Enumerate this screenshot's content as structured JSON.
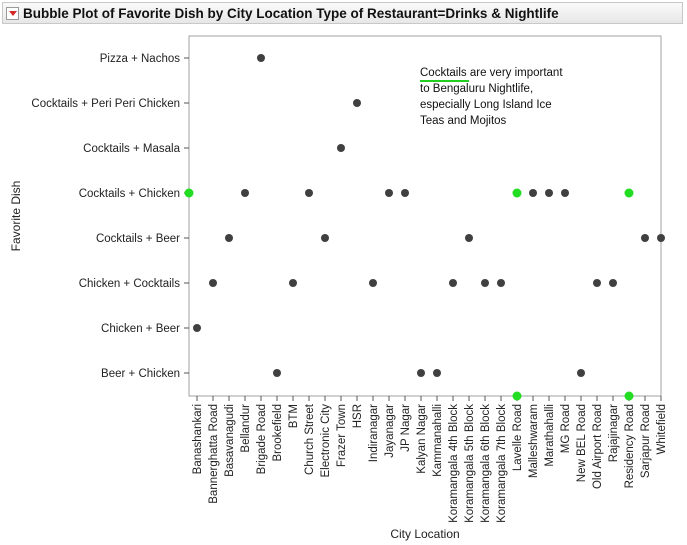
{
  "window": {
    "title": "Bubble Plot of Favorite Dish by City Location Type of Restaurant=Drinks & Nightlife"
  },
  "colors": {
    "point": "#404040",
    "highlight": "#22dd22",
    "frame": "#a0a0a0",
    "underline": "#22cc22"
  },
  "icons": {
    "collapse": "red-down-triangle-icon"
  },
  "annotation": {
    "highlight_word": "Cocktails",
    "rest": " are very important to Bengaluru Nightlife, especially Long Island Ice Teas and Mojitos"
  },
  "chart_data": {
    "type": "scatter",
    "title": "Bubble Plot of Favorite Dish by City Location Type of Restaurant=Drinks & Nightlife",
    "xlabel": "City Location",
    "ylabel": "Favorite Dish",
    "categories_x": [
      "Banashankari",
      "Bannerghatta Road",
      "Basavanagudi",
      "Bellandur",
      "Brigade Road",
      "Brookefield",
      "BTM",
      "Church Street",
      "Electronic City",
      "Frazer Town",
      "HSR",
      "Indiranagar",
      "Jayanagar",
      "JP Nagar",
      "Kalyan Nagar",
      "Kammanahalli",
      "Koramangala 4th Block",
      "Koramangala 5th Block",
      "Koramangala 6th Block",
      "Koramangala 7th Block",
      "Lavelle Road",
      "Malleshwaram",
      "Marathahalli",
      "MG Road",
      "New BEL Road",
      "Old Airport Road",
      "Rajajinagar",
      "Residency Road",
      "Sarjapur Road",
      "Whitefield"
    ],
    "categories_y": [
      "Pizza + Nachos",
      "Cocktails + Peri Peri Chicken",
      "Cocktails + Masala",
      "Cocktails + Chicken",
      "Cocktails + Beer",
      "Chicken + Cocktails",
      "Chicken + Beer",
      "Beer + Chicken"
    ],
    "points": [
      {
        "x": "Banashankari",
        "y": "Chicken + Beer"
      },
      {
        "x": "Bannerghatta Road",
        "y": "Chicken + Cocktails"
      },
      {
        "x": "Basavanagudi",
        "y": "Cocktails + Beer"
      },
      {
        "x": "Bellandur",
        "y": "Cocktails + Chicken"
      },
      {
        "x": "Brigade Road",
        "y": "Pizza + Nachos"
      },
      {
        "x": "Brookefield",
        "y": "Beer + Chicken"
      },
      {
        "x": "BTM",
        "y": "Chicken + Cocktails"
      },
      {
        "x": "Church Street",
        "y": "Cocktails + Chicken"
      },
      {
        "x": "Electronic City",
        "y": "Cocktails + Beer"
      },
      {
        "x": "Frazer Town",
        "y": "Cocktails + Masala"
      },
      {
        "x": "HSR",
        "y": "Cocktails + Peri Peri Chicken"
      },
      {
        "x": "Indiranagar",
        "y": "Chicken + Cocktails"
      },
      {
        "x": "Jayanagar",
        "y": "Cocktails + Chicken"
      },
      {
        "x": "JP Nagar",
        "y": "Cocktails + Chicken"
      },
      {
        "x": "Kalyan Nagar",
        "y": "Beer + Chicken"
      },
      {
        "x": "Kammanahalli",
        "y": "Beer + Chicken"
      },
      {
        "x": "Koramangala 4th Block",
        "y": "Chicken + Cocktails"
      },
      {
        "x": "Koramangala 5th Block",
        "y": "Cocktails + Beer"
      },
      {
        "x": "Koramangala 6th Block",
        "y": "Chicken + Cocktails"
      },
      {
        "x": "Koramangala 7th Block",
        "y": "Chicken + Cocktails"
      },
      {
        "x": "Lavelle Road",
        "y": "Cocktails + Chicken",
        "highlight": true
      },
      {
        "x": "Malleshwaram",
        "y": "Cocktails + Chicken"
      },
      {
        "x": "Marathahalli",
        "y": "Cocktails + Chicken"
      },
      {
        "x": "MG Road",
        "y": "Cocktails + Chicken"
      },
      {
        "x": "New BEL Road",
        "y": "Beer + Chicken"
      },
      {
        "x": "Old Airport Road",
        "y": "Chicken + Cocktails"
      },
      {
        "x": "Rajajinagar",
        "y": "Chicken + Cocktails"
      },
      {
        "x": "Residency Road",
        "y": "Cocktails + Chicken",
        "highlight": true
      },
      {
        "x": "Sarjapur Road",
        "y": "Cocktails + Beer"
      },
      {
        "x": "Whitefield",
        "y": "Cocktails + Beer"
      }
    ],
    "highlight_markers": {
      "y_axis": [
        "Cocktails + Chicken"
      ],
      "x_axis": [
        "Lavelle Road",
        "Residency Road"
      ]
    },
    "grid": false,
    "legend": "none"
  }
}
